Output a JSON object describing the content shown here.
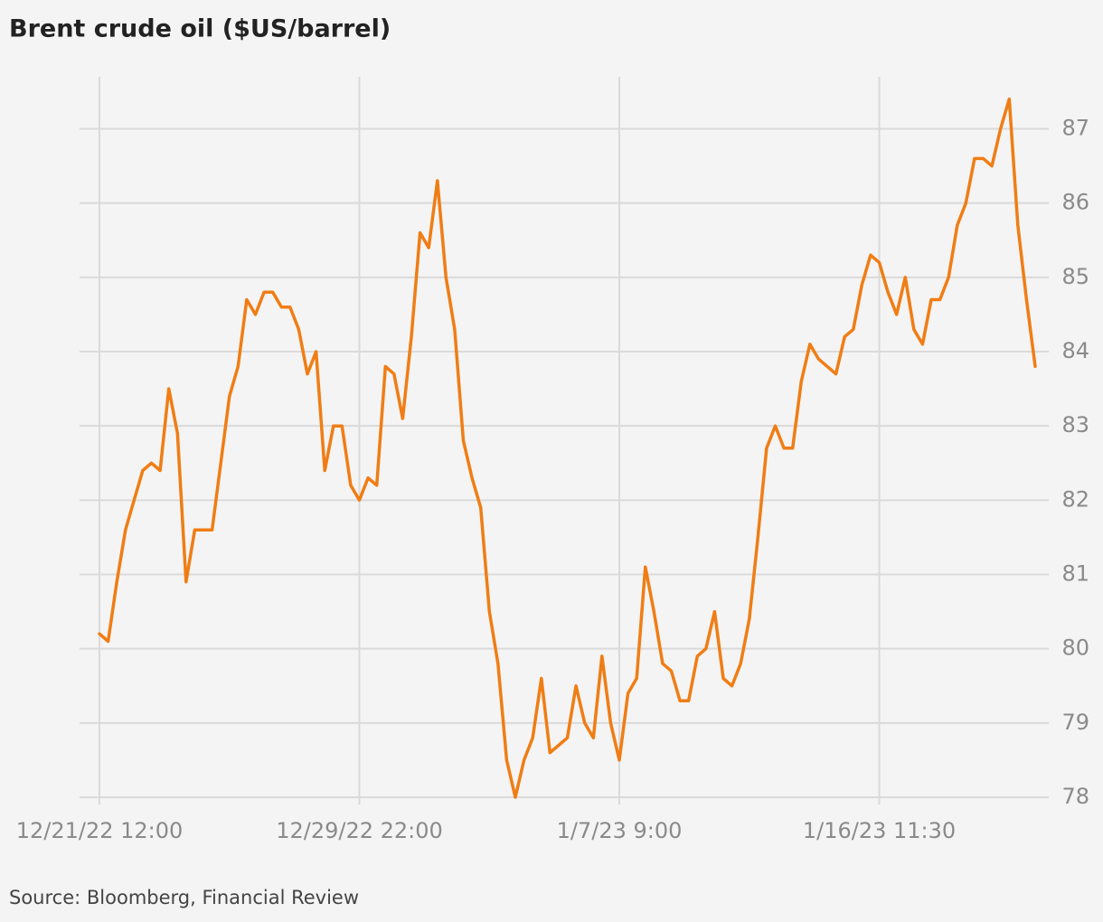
{
  "chart_data": {
    "type": "line",
    "title": "Brent crude oil ($US/barrel)",
    "source": "Source: Bloomberg, Financial Review",
    "color": "#f07d14",
    "grid": true,
    "categories": [
      "12/21/22 12:00",
      null,
      null,
      null,
      null,
      null,
      null,
      null,
      null,
      null,
      null,
      null,
      null,
      null,
      null,
      null,
      null,
      null,
      null,
      null,
      null,
      null,
      null,
      null,
      null,
      null,
      null,
      null,
      null,
      null,
      "12/29/22 22:00",
      null,
      null,
      null,
      null,
      null,
      null,
      null,
      null,
      null,
      null,
      null,
      null,
      null,
      null,
      null,
      null,
      null,
      null,
      null,
      null,
      null,
      null,
      null,
      null,
      null,
      null,
      null,
      null,
      null,
      "1/7/23 9:00",
      null,
      null,
      null,
      null,
      null,
      null,
      null,
      null,
      null,
      null,
      null,
      null,
      null,
      null,
      null,
      null,
      null,
      null,
      null,
      null,
      null,
      null,
      null,
      null,
      null,
      null,
      null,
      null,
      null,
      "1/16/23 11:30",
      null,
      null,
      null,
      null,
      null,
      null,
      null,
      null,
      null,
      null,
      null,
      null,
      null,
      null,
      null,
      null,
      null,
      null
    ],
    "values": [
      80.2,
      80.1,
      80.9,
      81.6,
      82.0,
      82.4,
      82.5,
      82.4,
      83.5,
      82.9,
      80.9,
      81.6,
      81.6,
      81.6,
      82.5,
      83.4,
      83.8,
      84.7,
      84.5,
      84.8,
      84.8,
      84.6,
      84.6,
      84.3,
      83.7,
      84.0,
      82.4,
      83.0,
      83.0,
      82.2,
      82.0,
      82.3,
      82.2,
      83.8,
      83.7,
      83.1,
      84.2,
      85.6,
      85.4,
      86.3,
      85.0,
      84.3,
      82.8,
      82.3,
      81.9,
      80.5,
      79.8,
      78.5,
      78.0,
      78.5,
      78.8,
      79.6,
      78.6,
      78.7,
      78.8,
      79.5,
      79.0,
      78.8,
      79.9,
      79.0,
      78.5,
      79.4,
      79.6,
      81.1,
      80.5,
      79.8,
      79.7,
      79.3,
      79.3,
      79.9,
      80.0,
      80.5,
      79.6,
      79.5,
      79.8,
      80.4,
      81.5,
      82.7,
      83.0,
      82.7,
      82.7,
      83.6,
      84.1,
      83.9,
      83.8,
      83.7,
      84.2,
      84.3,
      84.9,
      85.3,
      85.2,
      84.8,
      84.5,
      85.0,
      84.3,
      84.1,
      84.7,
      84.7,
      85.0,
      85.7,
      86.0,
      86.6,
      86.6,
      86.5,
      87.0,
      87.4,
      85.7,
      84.7,
      83.8
    ],
    "ylim": [
      78,
      87.7
    ],
    "yticks": [
      78,
      79,
      80,
      81,
      82,
      83,
      84,
      85,
      86,
      87
    ]
  }
}
